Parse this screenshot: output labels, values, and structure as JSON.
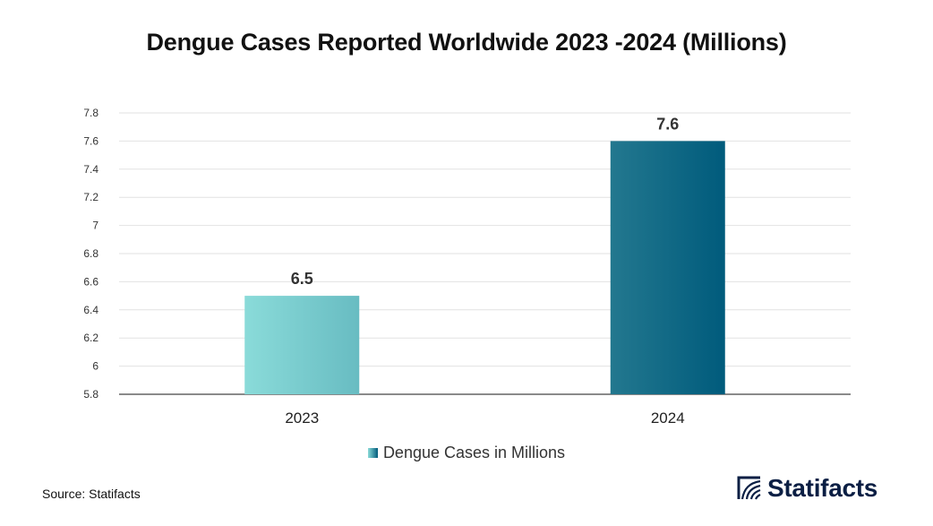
{
  "header": {
    "title": "Dengue Cases Reported Worldwide 2023 -2024 (Millions)"
  },
  "chart_data": {
    "type": "bar",
    "title": "Dengue Cases Reported Worldwide 2023 -2024 (Millions)",
    "categories": [
      "2023",
      "2024"
    ],
    "series": [
      {
        "name": "Dengue Cases in Millions",
        "values": [
          6.5,
          7.6
        ],
        "labels": [
          "6.5",
          "7.6"
        ]
      }
    ],
    "ylim": [
      5.8,
      7.8
    ],
    "yticks": [
      5.8,
      6,
      6.2,
      6.4,
      6.6,
      6.8,
      7,
      7.2,
      7.4,
      7.6,
      7.8
    ],
    "ytick_labels": [
      "5.8",
      "6",
      "6.2",
      "6.4",
      "6.6",
      "6.8",
      "7",
      "7.2",
      "7.4",
      "7.6",
      "7.8"
    ],
    "xlabel": "",
    "ylabel": "",
    "grid": true,
    "legend": "bottom-center",
    "bar_colors": [
      [
        "#8adbd9",
        "#68bcc2"
      ],
      [
        "#23788f",
        "#005b7c"
      ]
    ]
  },
  "legend": {
    "label": "Dengue Cases in Millions"
  },
  "footer": {
    "source": "Source: Statifacts"
  },
  "logo": {
    "text": "Statifacts",
    "color": "#0b1f44"
  }
}
